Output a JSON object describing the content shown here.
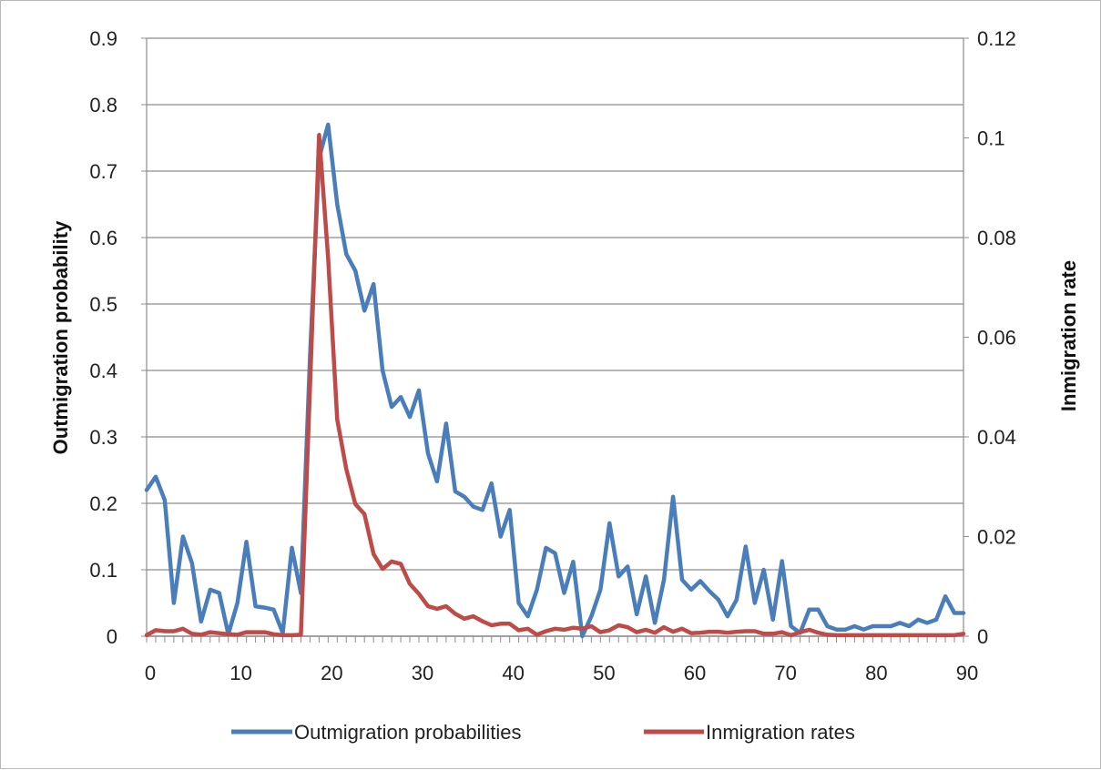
{
  "chart_data": {
    "type": "line",
    "title": "",
    "xlabel": "",
    "ylabel": "Outmigration probability",
    "y2label": "Inmigration rate",
    "xlim": [
      0,
      90
    ],
    "ylim": [
      0,
      0.9
    ],
    "y2lim": [
      0,
      0.12
    ],
    "x_ticks": [
      "0",
      "10",
      "20",
      "30",
      "40",
      "50",
      "60",
      "70",
      "80",
      "90"
    ],
    "y_ticks": [
      "0",
      "0.1",
      "0.2",
      "0.3",
      "0.4",
      "0.5",
      "0.6",
      "0.7",
      "0.8",
      "0.9"
    ],
    "y2_ticks": [
      "0",
      "0.02",
      "0.04",
      "0.06",
      "0.08",
      "0.1",
      "0.12"
    ],
    "grid": true,
    "legend_position": "bottom",
    "x": [
      0,
      1,
      2,
      3,
      4,
      5,
      6,
      7,
      8,
      9,
      10,
      11,
      12,
      13,
      14,
      15,
      16,
      17,
      18,
      19,
      20,
      21,
      22,
      23,
      24,
      25,
      26,
      27,
      28,
      29,
      30,
      31,
      32,
      33,
      34,
      35,
      36,
      37,
      38,
      39,
      40,
      41,
      42,
      43,
      44,
      45,
      46,
      47,
      48,
      49,
      50,
      51,
      52,
      53,
      54,
      55,
      56,
      57,
      58,
      59,
      60,
      61,
      62,
      63,
      64,
      65,
      66,
      67,
      68,
      69,
      70,
      71,
      72,
      73,
      74,
      75,
      76,
      77,
      78,
      79,
      80,
      81,
      82,
      83,
      84,
      85,
      86,
      87,
      88,
      89,
      90
    ],
    "series": [
      {
        "name": "Outmigration probabilities",
        "axis": "left",
        "color": "#4a7ebb",
        "values": [
          0.22,
          0.24,
          0.205,
          0.05,
          0.15,
          0.11,
          0.022,
          0.07,
          0.065,
          0.003,
          0.05,
          0.142,
          0.045,
          0.043,
          0.04,
          0.005,
          0.133,
          0.065,
          0.42,
          0.72,
          0.77,
          0.65,
          0.575,
          0.55,
          0.49,
          0.53,
          0.4,
          0.345,
          0.36,
          0.33,
          0.37,
          0.275,
          0.233,
          0.32,
          0.218,
          0.21,
          0.195,
          0.19,
          0.23,
          0.15,
          0.19,
          0.05,
          0.03,
          0.07,
          0.133,
          0.125,
          0.065,
          0.112,
          0.0,
          0.03,
          0.07,
          0.17,
          0.09,
          0.105,
          0.033,
          0.09,
          0.02,
          0.085,
          0.21,
          0.085,
          0.07,
          0.083,
          0.068,
          0.055,
          0.03,
          0.055,
          0.135,
          0.05,
          0.1,
          0.025,
          0.113,
          0.015,
          0.005,
          0.04,
          0.04,
          0.015,
          0.01,
          0.01,
          0.015,
          0.01,
          0.015,
          0.015,
          0.015,
          0.02,
          0.015,
          0.025,
          0.02,
          0.025,
          0.06,
          0.035,
          0.035
        ]
      },
      {
        "name": "Inmigration rates",
        "axis": "right",
        "color": "#be4b48",
        "values": [
          0.0002,
          0.0012,
          0.001,
          0.001,
          0.0015,
          0.0005,
          0.0003,
          0.0008,
          0.0006,
          0.0004,
          0.0003,
          0.0008,
          0.0008,
          0.0008,
          0.0004,
          0.0002,
          0.0002,
          0.0003,
          0.05,
          0.1006,
          0.076,
          0.0435,
          0.0335,
          0.0265,
          0.0245,
          0.0165,
          0.0135,
          0.015,
          0.0145,
          0.0105,
          0.0085,
          0.006,
          0.0055,
          0.006,
          0.0045,
          0.0035,
          0.004,
          0.003,
          0.0022,
          0.0025,
          0.0025,
          0.0012,
          0.0015,
          0.0003,
          0.001,
          0.0015,
          0.0013,
          0.0017,
          0.0015,
          0.002,
          0.0008,
          0.0012,
          0.0022,
          0.0018,
          0.0008,
          0.0013,
          0.0007,
          0.0018,
          0.0009,
          0.0015,
          0.0006,
          0.0007,
          0.0009,
          0.0009,
          0.0007,
          0.0009,
          0.001,
          0.001,
          0.0005,
          0.0005,
          0.0008,
          0.0002,
          0.0008,
          0.0013,
          0.0007,
          0.0003,
          0.0002,
          0.0002,
          0.0002,
          0.0002,
          0.0002,
          0.0002,
          0.0002,
          0.0002,
          0.0002,
          0.0002,
          0.0002,
          0.0002,
          0.0002,
          0.0002,
          0.0005
        ]
      }
    ]
  }
}
